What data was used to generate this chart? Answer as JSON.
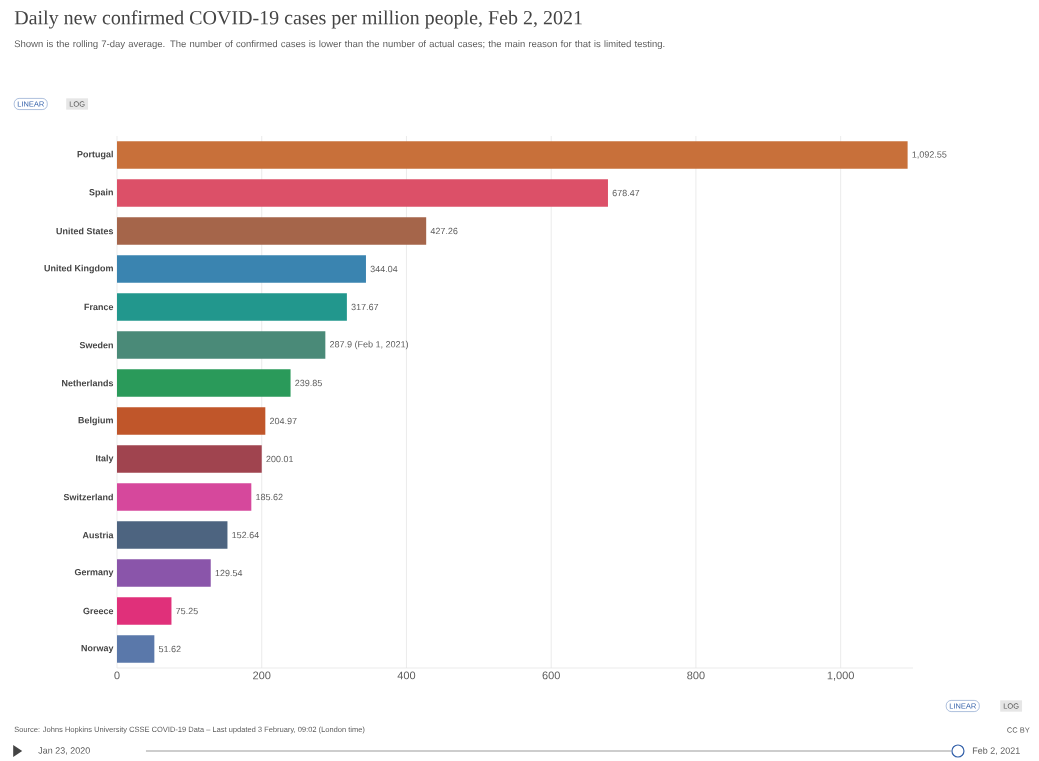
{
  "chart_data": {
    "type": "bar",
    "orientation": "horizontal",
    "title": "Daily new confirmed COVID-19 cases per million people, Feb 2, 2021",
    "subtitle": "Shown is the rolling 7-day average. The number of confirmed cases is lower than the number of actual cases; the main reason for that is limited testing.",
    "categories": [
      "Portugal",
      "Spain",
      "United States",
      "United Kingdom",
      "France",
      "Sweden",
      "Netherlands",
      "Belgium",
      "Italy",
      "Switzerland",
      "Austria",
      "Germany",
      "Greece",
      "Norway"
    ],
    "values": [
      1092.55,
      678.47,
      427.26,
      344.04,
      317.67,
      287.9,
      239.85,
      204.97,
      200.01,
      185.62,
      152.64,
      129.54,
      75.25,
      51.62
    ],
    "value_labels": [
      "1,092.55",
      "678.47",
      "427.26",
      "344.04",
      "317.67",
      "287.9 (Feb 1, 2021)",
      "239.85",
      "204.97",
      "200.01",
      "185.62",
      "152.64",
      "129.54",
      "75.25",
      "51.62"
    ],
    "colors": [
      "#c8703a",
      "#dc5068",
      "#a5654a",
      "#3a84b0",
      "#22978d",
      "#4a8a78",
      "#2a9a5a",
      "#c0562a",
      "#a0444f",
      "#d6489c",
      "#4d6480",
      "#8a55aa",
      "#e0307a",
      "#5a78aa"
    ],
    "xticks": [
      0,
      200,
      400,
      600,
      800,
      {
        "value": 1000,
        "label": "1,000"
      }
    ],
    "xlim": [
      0,
      1100
    ],
    "grid": "x",
    "annotations": [
      "LINEAR",
      "LOG",
      "LINEAR",
      "LOG",
      "Source: Johns Hopkins University CSSE COVID-19 Data – Last updated 3 February, 09:02 (London time)",
      "CC BY",
      "Jan 23, 2020",
      "Feb 2, 2021"
    ]
  }
}
